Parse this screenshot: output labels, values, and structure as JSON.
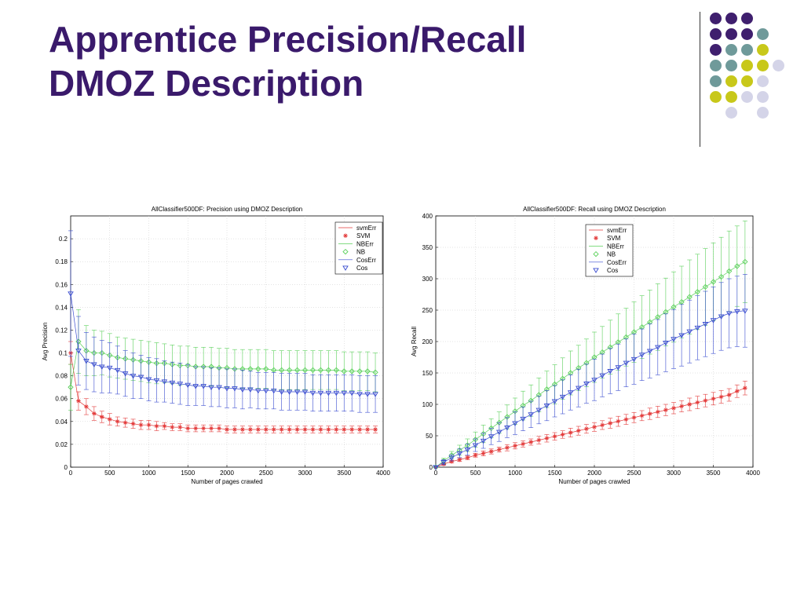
{
  "slide": {
    "title_line1": "Apprentice Precision/Recall",
    "title_line2": "DMOZ Description"
  },
  "colors": {
    "title": "#3a1a6b",
    "purple": "#3f1f6e",
    "teal": "#6f9a9a",
    "yellow": "#c8c81a",
    "lavender": "#d4d4e8",
    "svm": "#e33a3a",
    "nb": "#5ad05a",
    "cos": "#3a4cd0"
  },
  "decoration": {
    "dot_grid": [
      [
        "purple",
        "purple",
        "purple",
        "",
        ""
      ],
      [
        "purple",
        "purple",
        "purple",
        "teal",
        ""
      ],
      [
        "purple",
        "teal",
        "teal",
        "yellow",
        ""
      ],
      [
        "teal",
        "teal",
        "yellow",
        "yellow",
        "lavender"
      ],
      [
        "teal",
        "yellow",
        "yellow",
        "lavender",
        ""
      ],
      [
        "yellow",
        "yellow",
        "lavender",
        "lavender",
        ""
      ],
      [
        "",
        "lavender",
        "",
        "lavender",
        ""
      ]
    ]
  },
  "chart_data": [
    {
      "type": "line",
      "title": "AllClassifier500DF: Precision using DMOZ Description",
      "xlabel": "Number of pages crawled",
      "ylabel": "Avg Precision",
      "xlim": [
        0,
        4000
      ],
      "ylim": [
        0,
        0.22
      ],
      "xticks": [
        0,
        500,
        1000,
        1500,
        2000,
        2500,
        3000,
        3500,
        4000
      ],
      "yticks": [
        0,
        0.02,
        0.04,
        0.06,
        0.08,
        0.1,
        0.12,
        0.14,
        0.16,
        0.18,
        0.2
      ],
      "ytick_labels": [
        "0",
        "0.02",
        "0.04",
        "0.06",
        "0.08",
        "0.1",
        "0.12",
        "0.14",
        "0.16",
        "0.18",
        "0.2"
      ],
      "grid": true,
      "legend_position": "top-right",
      "legend": [
        "svmErr",
        "SVM",
        "NBErr",
        "NB",
        "CosErr",
        "Cos"
      ],
      "series": [
        {
          "name": "SVM",
          "marker": "star",
          "color": "#e33a3a",
          "x": [
            0,
            100,
            200,
            300,
            400,
            500,
            600,
            700,
            800,
            900,
            1000,
            1100,
            1200,
            1300,
            1400,
            1500,
            1600,
            1700,
            1800,
            1900,
            2000,
            2100,
            2200,
            2300,
            2400,
            2500,
            2600,
            2700,
            2800,
            2900,
            3000,
            3100,
            3200,
            3300,
            3400,
            3500,
            3600,
            3700,
            3800,
            3900
          ],
          "y": [
            0.1,
            0.058,
            0.053,
            0.047,
            0.044,
            0.042,
            0.04,
            0.039,
            0.038,
            0.037,
            0.037,
            0.036,
            0.036,
            0.035,
            0.035,
            0.034,
            0.034,
            0.034,
            0.034,
            0.034,
            0.033,
            0.033,
            0.033,
            0.033,
            0.033,
            0.033,
            0.033,
            0.033,
            0.033,
            0.033,
            0.033,
            0.033,
            0.033,
            0.033,
            0.033,
            0.033,
            0.033,
            0.033,
            0.033,
            0.033
          ],
          "err": [
            0.01,
            0.008,
            0.007,
            0.006,
            0.005,
            0.005,
            0.004,
            0.004,
            0.004,
            0.004,
            0.004,
            0.004,
            0.003,
            0.003,
            0.003,
            0.003,
            0.003,
            0.003,
            0.003,
            0.003,
            0.003,
            0.003,
            0.003,
            0.003,
            0.003,
            0.003,
            0.003,
            0.003,
            0.003,
            0.003,
            0.003,
            0.003,
            0.003,
            0.003,
            0.003,
            0.003,
            0.003,
            0.003,
            0.003,
            0.003
          ]
        },
        {
          "name": "NB",
          "marker": "diamond",
          "color": "#5ad05a",
          "x": [
            0,
            100,
            200,
            300,
            400,
            500,
            600,
            700,
            800,
            900,
            1000,
            1100,
            1200,
            1300,
            1400,
            1500,
            1600,
            1700,
            1800,
            1900,
            2000,
            2100,
            2200,
            2300,
            2400,
            2500,
            2600,
            2700,
            2800,
            2900,
            3000,
            3100,
            3200,
            3300,
            3400,
            3500,
            3600,
            3700,
            3800,
            3900
          ],
          "y": [
            0.07,
            0.11,
            0.102,
            0.1,
            0.1,
            0.098,
            0.096,
            0.095,
            0.094,
            0.093,
            0.092,
            0.091,
            0.091,
            0.09,
            0.089,
            0.089,
            0.088,
            0.088,
            0.088,
            0.087,
            0.087,
            0.086,
            0.086,
            0.086,
            0.086,
            0.086,
            0.085,
            0.085,
            0.085,
            0.085,
            0.085,
            0.085,
            0.085,
            0.085,
            0.085,
            0.084,
            0.084,
            0.084,
            0.084,
            0.083
          ],
          "err": [
            0.02,
            0.028,
            0.022,
            0.02,
            0.019,
            0.019,
            0.018,
            0.018,
            0.018,
            0.018,
            0.018,
            0.018,
            0.017,
            0.017,
            0.017,
            0.017,
            0.017,
            0.017,
            0.017,
            0.017,
            0.017,
            0.017,
            0.017,
            0.017,
            0.017,
            0.017,
            0.017,
            0.017,
            0.017,
            0.017,
            0.017,
            0.017,
            0.017,
            0.017,
            0.017,
            0.017,
            0.017,
            0.017,
            0.017,
            0.017
          ]
        },
        {
          "name": "Cos",
          "marker": "triangle-down",
          "color": "#3a4cd0",
          "x": [
            0,
            100,
            200,
            300,
            400,
            500,
            600,
            700,
            800,
            900,
            1000,
            1100,
            1200,
            1300,
            1400,
            1500,
            1600,
            1700,
            1800,
            1900,
            2000,
            2100,
            2200,
            2300,
            2400,
            2500,
            2600,
            2700,
            2800,
            2900,
            3000,
            3100,
            3200,
            3300,
            3400,
            3500,
            3600,
            3700,
            3800,
            3900
          ],
          "y": [
            0.152,
            0.102,
            0.093,
            0.09,
            0.088,
            0.087,
            0.085,
            0.082,
            0.08,
            0.079,
            0.077,
            0.076,
            0.075,
            0.074,
            0.073,
            0.072,
            0.071,
            0.071,
            0.07,
            0.07,
            0.069,
            0.069,
            0.068,
            0.068,
            0.067,
            0.067,
            0.067,
            0.066,
            0.066,
            0.066,
            0.066,
            0.065,
            0.065,
            0.065,
            0.065,
            0.065,
            0.065,
            0.064,
            0.064,
            0.064
          ],
          "err": [
            0.055,
            0.03,
            0.025,
            0.024,
            0.023,
            0.022,
            0.021,
            0.02,
            0.02,
            0.019,
            0.019,
            0.019,
            0.018,
            0.018,
            0.018,
            0.018,
            0.017,
            0.017,
            0.017,
            0.017,
            0.017,
            0.017,
            0.017,
            0.016,
            0.016,
            0.016,
            0.016,
            0.016,
            0.016,
            0.016,
            0.016,
            0.016,
            0.016,
            0.016,
            0.016,
            0.016,
            0.016,
            0.016,
            0.016,
            0.016
          ]
        }
      ]
    },
    {
      "type": "line",
      "title": "AllClassifier500DF: Recall using DMOZ Description",
      "xlabel": "Number of pages crawled",
      "ylabel": "Avg Recall",
      "xlim": [
        0,
        4000
      ],
      "ylim": [
        0,
        400
      ],
      "xticks": [
        0,
        500,
        1000,
        1500,
        2000,
        2500,
        3000,
        3500,
        4000
      ],
      "yticks": [
        0,
        50,
        100,
        150,
        200,
        250,
        300,
        350,
        400
      ],
      "ytick_labels": [
        "0",
        "50",
        "100",
        "150",
        "200",
        "250",
        "300",
        "350",
        "400"
      ],
      "grid": true,
      "legend_position": "top-left",
      "legend": [
        "svmErr",
        "SVM",
        "NBErr",
        "NB",
        "CosErr",
        "Cos"
      ],
      "series": [
        {
          "name": "SVM",
          "marker": "star",
          "color": "#e33a3a",
          "x": [
            0,
            100,
            200,
            300,
            400,
            500,
            600,
            700,
            800,
            900,
            1000,
            1100,
            1200,
            1300,
            1400,
            1500,
            1600,
            1700,
            1800,
            1900,
            2000,
            2100,
            2200,
            2300,
            2400,
            2500,
            2600,
            2700,
            2800,
            2900,
            3000,
            3100,
            3200,
            3300,
            3400,
            3500,
            3600,
            3700,
            3800,
            3900
          ],
          "y": [
            0,
            5,
            9,
            12,
            15,
            19,
            22,
            25,
            28,
            31,
            34,
            37,
            40,
            43,
            46,
            49,
            52,
            55,
            58,
            61,
            64,
            67,
            70,
            73,
            76,
            79,
            82,
            85,
            88,
            91,
            94,
            97,
            100,
            103,
            106,
            109,
            112,
            115,
            121,
            126
          ],
          "err": [
            1,
            2,
            2,
            3,
            3,
            3,
            4,
            4,
            4,
            5,
            5,
            5,
            5,
            6,
            6,
            6,
            6,
            7,
            7,
            7,
            7,
            7,
            8,
            8,
            8,
            8,
            8,
            9,
            9,
            9,
            9,
            9,
            10,
            10,
            10,
            10,
            10,
            10,
            10,
            11
          ]
        },
        {
          "name": "NB",
          "marker": "diamond",
          "color": "#5ad05a",
          "x": [
            0,
            100,
            200,
            300,
            400,
            500,
            600,
            700,
            800,
            900,
            1000,
            1100,
            1200,
            1300,
            1400,
            1500,
            1600,
            1700,
            1800,
            1900,
            2000,
            2100,
            2200,
            2300,
            2400,
            2500,
            2600,
            2700,
            2800,
            2900,
            3000,
            3100,
            3200,
            3300,
            3400,
            3500,
            3600,
            3700,
            3800,
            3900
          ],
          "y": [
            0,
            10,
            19,
            27,
            35,
            44,
            53,
            62,
            71,
            80,
            89,
            98,
            106,
            115,
            124,
            132,
            141,
            150,
            158,
            166,
            175,
            183,
            191,
            199,
            207,
            215,
            223,
            231,
            239,
            247,
            255,
            263,
            271,
            279,
            287,
            295,
            303,
            312,
            320,
            327
          ],
          "err": [
            2,
            4,
            6,
            8,
            10,
            12,
            14,
            15,
            17,
            19,
            21,
            23,
            25,
            27,
            29,
            31,
            33,
            35,
            36,
            38,
            40,
            41,
            43,
            45,
            46,
            48,
            50,
            51,
            53,
            54,
            56,
            57,
            59,
            60,
            61,
            62,
            63,
            64,
            64,
            65
          ]
        },
        {
          "name": "Cos",
          "marker": "triangle-down",
          "color": "#3a4cd0",
          "x": [
            0,
            100,
            200,
            300,
            400,
            500,
            600,
            700,
            800,
            900,
            1000,
            1100,
            1200,
            1300,
            1400,
            1500,
            1600,
            1700,
            1800,
            1900,
            2000,
            2100,
            2200,
            2300,
            2400,
            2500,
            2600,
            2700,
            2800,
            2900,
            3000,
            3100,
            3200,
            3300,
            3400,
            3500,
            3600,
            3700,
            3800,
            3900
          ],
          "y": [
            0,
            8,
            15,
            22,
            28,
            35,
            42,
            49,
            56,
            63,
            70,
            77,
            84,
            91,
            98,
            105,
            112,
            119,
            126,
            133,
            139,
            146,
            153,
            159,
            166,
            172,
            179,
            185,
            191,
            198,
            204,
            210,
            216,
            222,
            228,
            234,
            240,
            245,
            248,
            249
          ],
          "err": [
            2,
            4,
            5,
            7,
            9,
            10,
            12,
            13,
            15,
            16,
            18,
            19,
            21,
            22,
            24,
            25,
            27,
            28,
            30,
            31,
            33,
            34,
            36,
            37,
            38,
            40,
            41,
            43,
            44,
            46,
            47,
            49,
            50,
            51,
            52,
            53,
            54,
            55,
            56,
            58
          ]
        }
      ]
    }
  ]
}
